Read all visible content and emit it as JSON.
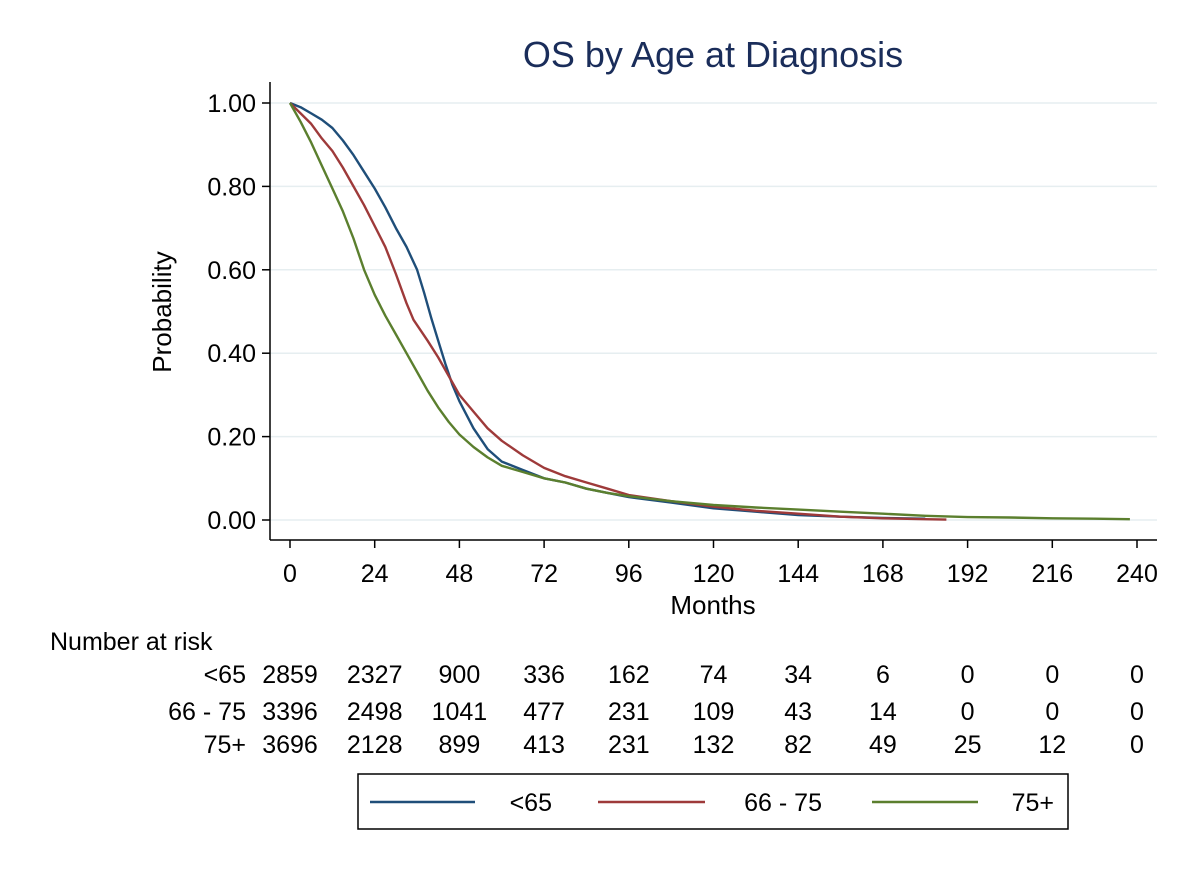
{
  "chart_data": {
    "type": "line",
    "title": "OS by Age at Diagnosis",
    "xlabel": "Months",
    "ylabel": "Probability",
    "xlim": [
      0,
      240
    ],
    "ylim": [
      0,
      1
    ],
    "x_ticks": [
      "0",
      "24",
      "48",
      "72",
      "96",
      "120",
      "144",
      "168",
      "192",
      "216",
      "240"
    ],
    "y_ticks": [
      "0.00",
      "0.20",
      "0.40",
      "0.60",
      "0.80",
      "1.00"
    ],
    "grid": "horizontal",
    "title_color": "#1a2d5a",
    "series": [
      {
        "name": "<65",
        "color": "#1f4e79",
        "x": [
          0,
          3,
          6,
          9,
          12,
          15,
          18,
          21,
          24,
          27,
          30,
          33,
          36,
          38,
          40,
          42,
          44,
          46,
          48,
          52,
          56,
          60,
          66,
          72,
          78,
          84,
          90,
          96,
          108,
          120,
          132,
          144,
          156,
          168,
          180
        ],
        "y": [
          1.0,
          0.99,
          0.975,
          0.96,
          0.94,
          0.91,
          0.875,
          0.835,
          0.795,
          0.75,
          0.7,
          0.655,
          0.6,
          0.545,
          0.485,
          0.43,
          0.375,
          0.325,
          0.285,
          0.22,
          0.17,
          0.14,
          0.12,
          0.1,
          0.09,
          0.075,
          0.065,
          0.055,
          0.042,
          0.028,
          0.02,
          0.012,
          0.008,
          0.005,
          0.003
        ]
      },
      {
        "name": "66 - 75",
        "color": "#9e3a3a",
        "x": [
          0,
          3,
          6,
          9,
          12,
          15,
          18,
          21,
          24,
          27,
          30,
          33,
          35,
          37,
          39,
          42,
          45,
          48,
          52,
          56,
          60,
          66,
          72,
          78,
          84,
          90,
          96,
          108,
          120,
          132,
          144,
          156,
          168,
          180,
          186
        ],
        "y": [
          1.0,
          0.975,
          0.95,
          0.915,
          0.885,
          0.845,
          0.8,
          0.755,
          0.705,
          0.655,
          0.59,
          0.52,
          0.48,
          0.455,
          0.43,
          0.39,
          0.345,
          0.3,
          0.26,
          0.22,
          0.19,
          0.155,
          0.125,
          0.105,
          0.09,
          0.075,
          0.06,
          0.045,
          0.032,
          0.022,
          0.015,
          0.008,
          0.004,
          0.002,
          0.001
        ]
      },
      {
        "name": "75+",
        "color": "#5b7f2e",
        "x": [
          0,
          3,
          6,
          9,
          12,
          15,
          18,
          21,
          24,
          27,
          30,
          33,
          36,
          39,
          42,
          45,
          48,
          52,
          56,
          60,
          66,
          72,
          78,
          84,
          90,
          96,
          108,
          120,
          132,
          144,
          156,
          168,
          180,
          192,
          204,
          216,
          228,
          238
        ],
        "y": [
          1.0,
          0.955,
          0.905,
          0.85,
          0.795,
          0.74,
          0.675,
          0.6,
          0.54,
          0.49,
          0.445,
          0.4,
          0.355,
          0.31,
          0.27,
          0.235,
          0.205,
          0.175,
          0.15,
          0.13,
          0.115,
          0.1,
          0.09,
          0.075,
          0.065,
          0.057,
          0.045,
          0.036,
          0.03,
          0.025,
          0.02,
          0.015,
          0.01,
          0.007,
          0.006,
          0.004,
          0.003,
          0.002
        ]
      }
    ],
    "risk_table": {
      "heading": "Number at risk",
      "rows": [
        {
          "label": "<65",
          "values": [
            "2859",
            "2327",
            "900",
            "336",
            "162",
            "74",
            "34",
            "6",
            "0",
            "0",
            "0"
          ]
        },
        {
          "label": "66 - 75",
          "values": [
            "3396",
            "2498",
            "1041",
            "477",
            "231",
            "109",
            "43",
            "14",
            "0",
            "0",
            "0"
          ]
        },
        {
          "label": "75+",
          "values": [
            "3696",
            "2128",
            "899",
            "413",
            "231",
            "132",
            "82",
            "49",
            "25",
            "12",
            "0"
          ]
        }
      ]
    },
    "legend_position": "bottom"
  }
}
